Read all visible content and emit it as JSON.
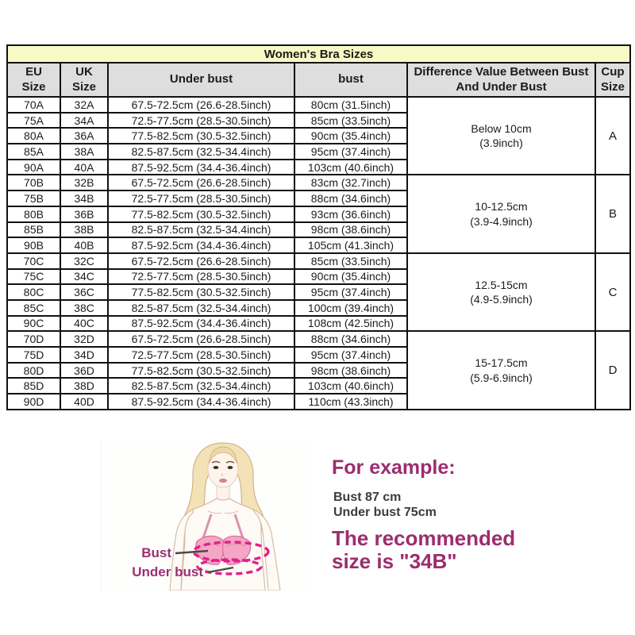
{
  "table": {
    "title": "Women's Bra Sizes",
    "columns": [
      "EU Size",
      "UK Size",
      "Under bust",
      "bust",
      "Difference Value Between Bust And Under Bust",
      "Cup Size"
    ],
    "groups": [
      {
        "cup": "A",
        "difference": "Below 10cm\n(3.9inch)",
        "rows": [
          [
            "70A",
            "32A",
            "67.5-72.5cm (26.6-28.5inch)",
            "80cm (31.5inch)"
          ],
          [
            "75A",
            "34A",
            "72.5-77.5cm (28.5-30.5inch)",
            "85cm (33.5inch)"
          ],
          [
            "80A",
            "36A",
            "77.5-82.5cm (30.5-32.5inch)",
            "90cm (35.4inch)"
          ],
          [
            "85A",
            "38A",
            "82.5-87.5cm (32.5-34.4inch)",
            "95cm (37.4inch)"
          ],
          [
            "90A",
            "40A",
            "87.5-92.5cm (34.4-36.4inch)",
            "103cm (40.6inch)"
          ]
        ]
      },
      {
        "cup": "B",
        "difference": "10-12.5cm\n(3.9-4.9inch)",
        "rows": [
          [
            "70B",
            "32B",
            "67.5-72.5cm (26.6-28.5inch)",
            "83cm (32.7inch)"
          ],
          [
            "75B",
            "34B",
            "72.5-77.5cm (28.5-30.5inch)",
            "88cm (34.6inch)"
          ],
          [
            "80B",
            "36B",
            "77.5-82.5cm (30.5-32.5inch)",
            "93cm (36.6inch)"
          ],
          [
            "85B",
            "38B",
            "82.5-87.5cm (32.5-34.4inch)",
            "98cm (38.6inch)"
          ],
          [
            "90B",
            "40B",
            "87.5-92.5cm (34.4-36.4inch)",
            "105cm (41.3inch)"
          ]
        ]
      },
      {
        "cup": "C",
        "difference": "12.5-15cm\n(4.9-5.9inch)",
        "rows": [
          [
            "70C",
            "32C",
            "67.5-72.5cm (26.6-28.5inch)",
            "85cm (33.5inch)"
          ],
          [
            "75C",
            "34C",
            "72.5-77.5cm (28.5-30.5inch)",
            "90cm (35.4inch)"
          ],
          [
            "80C",
            "36C",
            "77.5-82.5cm (30.5-32.5inch)",
            "95cm (37.4inch)"
          ],
          [
            "85C",
            "38C",
            "82.5-87.5cm (32.5-34.4inch)",
            "100cm (39.4inch)"
          ],
          [
            "90C",
            "40C",
            "87.5-92.5cm (34.4-36.4inch)",
            "108cm (42.5inch)"
          ]
        ]
      },
      {
        "cup": "D",
        "difference": "15-17.5cm\n(5.9-6.9inch)",
        "rows": [
          [
            "70D",
            "32D",
            "67.5-72.5cm (26.6-28.5inch)",
            "88cm (34.6inch)"
          ],
          [
            "75D",
            "34D",
            "72.5-77.5cm (28.5-30.5inch)",
            "95cm (37.4inch)"
          ],
          [
            "80D",
            "36D",
            "77.5-82.5cm (30.5-32.5inch)",
            "98cm (38.6inch)"
          ],
          [
            "85D",
            "38D",
            "82.5-87.5cm (32.5-34.4inch)",
            "103cm (40.6inch)"
          ],
          [
            "90D",
            "40D",
            "87.5-92.5cm (34.4-36.4inch)",
            "110cm (43.3inch)"
          ]
        ]
      }
    ]
  },
  "diagram": {
    "bust_label": "Bust",
    "under_bust_label": "Under bust"
  },
  "example": {
    "heading": "For example:",
    "bust_line": "Bust 87 cm",
    "under_bust_line": "Under bust 75cm",
    "recommendation": "The recommended\nsize is \"34B\""
  },
  "colors": {
    "title_bg": "#f9f9c5",
    "header_bg": "#dedede",
    "table_border": "#111111",
    "accent_magenta": "#9c2d6e",
    "measure_ellipse_pink": "#e0218a",
    "bra_pink": "#f5a6c4"
  }
}
